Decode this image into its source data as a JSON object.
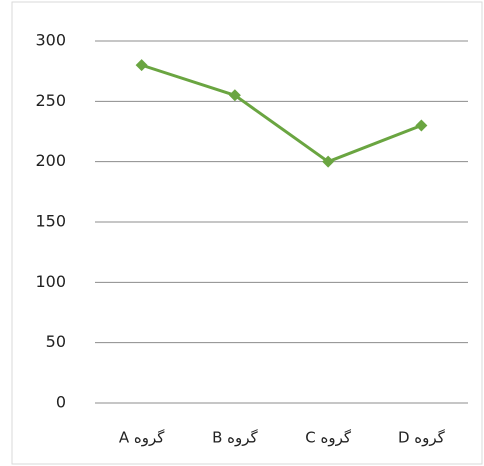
{
  "chart_data": {
    "type": "line",
    "categories": [
      "گروه A",
      "گروه B",
      "گروه C",
      "گروه D"
    ],
    "series": [
      {
        "color": "#6aa541",
        "values": [
          280,
          255,
          200,
          230
        ]
      }
    ],
    "ylim": [
      0,
      300
    ],
    "yticks": [
      0,
      50,
      100,
      150,
      200,
      250,
      300
    ],
    "grid": true
  }
}
